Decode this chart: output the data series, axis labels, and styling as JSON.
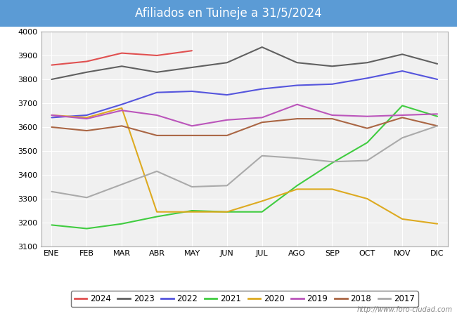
{
  "title": "Afiliados en Tuineje a 31/5/2024",
  "title_bg_color": "#5b9bd5",
  "title_text_color": "#ffffff",
  "ylim": [
    3100,
    4000
  ],
  "yticks": [
    3100,
    3200,
    3300,
    3400,
    3500,
    3600,
    3700,
    3800,
    3900,
    4000
  ],
  "months": [
    "ENE",
    "FEB",
    "MAR",
    "ABR",
    "MAY",
    "JUN",
    "JUL",
    "AGO",
    "SEP",
    "OCT",
    "NOV",
    "DIC"
  ],
  "watermark": "http://www.foro-ciudad.com",
  "series": {
    "2024": {
      "color": "#e05050",
      "values": [
        3860,
        3875,
        3910,
        3900,
        3920,
        null,
        null,
        null,
        null,
        null,
        null,
        null
      ]
    },
    "2023": {
      "color": "#606060",
      "values": [
        3800,
        3830,
        3855,
        3830,
        3850,
        3870,
        3935,
        3870,
        3855,
        3870,
        3905,
        3865
      ]
    },
    "2022": {
      "color": "#5555dd",
      "values": [
        3640,
        3650,
        3695,
        3745,
        3750,
        3735,
        3760,
        3775,
        3780,
        3805,
        3835,
        3800
      ]
    },
    "2021": {
      "color": "#40cc40",
      "values": [
        3190,
        3175,
        3195,
        3225,
        3250,
        3245,
        3245,
        3355,
        3450,
        3535,
        3690,
        3645
      ]
    },
    "2020": {
      "color": "#ddaa20",
      "values": [
        3650,
        3640,
        3680,
        3245,
        3245,
        3245,
        3290,
        3340,
        3340,
        3300,
        3215,
        3195
      ]
    },
    "2019": {
      "color": "#bb55bb",
      "values": [
        3650,
        3635,
        3670,
        3650,
        3605,
        3630,
        3640,
        3695,
        3650,
        3645,
        3650,
        3655
      ]
    },
    "2018": {
      "color": "#aa6644",
      "values": [
        3600,
        3585,
        3605,
        3565,
        3565,
        3565,
        3620,
        3635,
        3635,
        3595,
        3640,
        3605
      ]
    },
    "2017": {
      "color": "#aaaaaa",
      "values": [
        3330,
        3305,
        3360,
        3415,
        3350,
        3355,
        3480,
        3470,
        3455,
        3460,
        3555,
        3605
      ]
    }
  }
}
